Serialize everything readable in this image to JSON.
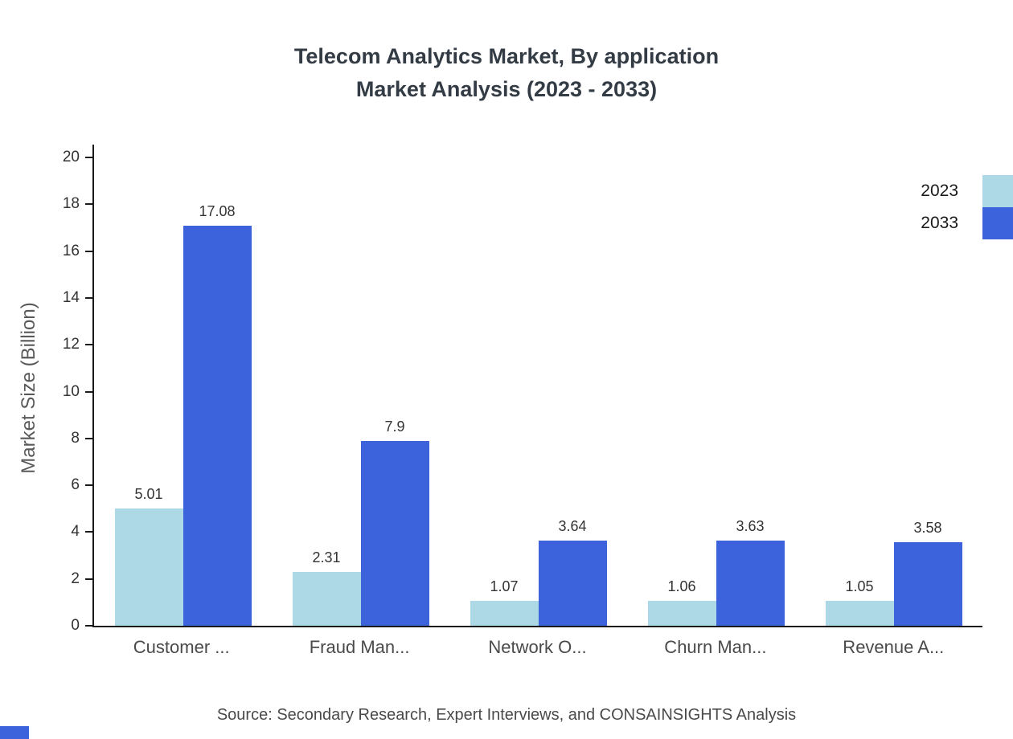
{
  "title": {
    "line1": "Telecom Analytics Market, By application",
    "line2": "Market Analysis (2023 - 2033)"
  },
  "source": "Source: Secondary Research, Expert Interviews, and CONSAINSIGHTS Analysis",
  "colors": {
    "series_2023": "#ADD8E6",
    "series_2033": "#3D63DC",
    "axis": "#1a1a1a"
  },
  "chart_data": {
    "type": "bar",
    "categories": [
      "Customer ...",
      "Fraud Man...",
      "Network O...",
      "Churn Man...",
      "Revenue A..."
    ],
    "series": [
      {
        "name": "2023",
        "color": "#ADD8E6",
        "values": [
          5.01,
          2.31,
          1.07,
          1.06,
          1.05
        ]
      },
      {
        "name": "2033",
        "color": "#3D63DC",
        "values": [
          17.08,
          7.9,
          3.64,
          3.63,
          3.58
        ]
      }
    ],
    "title": "Telecom Analytics Market, By application Market Analysis (2023 - 2033)",
    "xlabel": "",
    "ylabel": "Market Size (Billion)",
    "ylim": [
      0,
      20
    ],
    "ytick_step": 2,
    "legend_position": "top-right",
    "grid": false
  }
}
